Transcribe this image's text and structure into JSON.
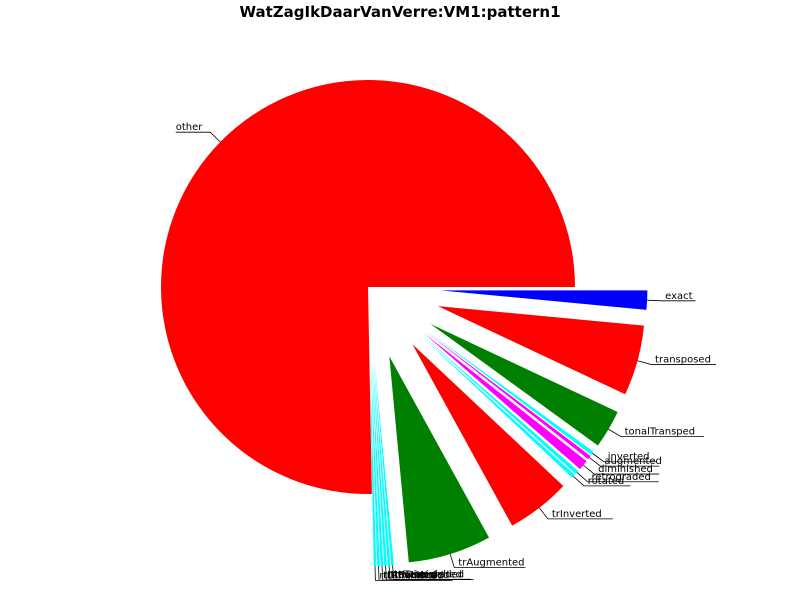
{
  "chart_data": {
    "type": "pie",
    "title": "WatZagIkDaarVanVerre:VM1:pattern1",
    "start_angle_deg": 0,
    "direction": "clockwise",
    "slices": [
      {
        "label": "exact",
        "value": 1.5,
        "color": "#0000ff"
      },
      {
        "label": "transposed",
        "value": 5.5,
        "color": "#ff0000"
      },
      {
        "label": "tonalTransped",
        "value": 3.0,
        "color": "#008000"
      },
      {
        "label": "inverted",
        "value": 0.3,
        "color": "#00ffff"
      },
      {
        "label": "augmented",
        "value": 0.3,
        "color": "#ff00ff"
      },
      {
        "label": "diminished",
        "value": 0.8,
        "color": "#ff00ff"
      },
      {
        "label": "retrograded",
        "value": 0.3,
        "color": "#00ffff"
      },
      {
        "label": "rotated",
        "value": 0.3,
        "color": "#00ffff"
      },
      {
        "label": "trInverted",
        "value": 5.0,
        "color": "#ff0000"
      },
      {
        "label": "trAugmented",
        "value": 6.5,
        "color": "#008000"
      },
      {
        "label": "trDiminished",
        "value": 0.2,
        "color": "#00ffff"
      },
      {
        "label": "trRetrograded",
        "value": 0.2,
        "color": "#00ffff"
      },
      {
        "label": "trRotated",
        "value": 0.2,
        "color": "#00ffff"
      },
      {
        "label": "rtInverted",
        "value": 0.2,
        "color": "#00ffff"
      },
      {
        "label": "rtAugmented",
        "value": 0.2,
        "color": "#00ffff"
      },
      {
        "label": "rtDiminished",
        "value": 0.2,
        "color": "#00ffff"
      },
      {
        "label": "other",
        "value": 75.3,
        "color": "#ff0000"
      }
    ]
  }
}
